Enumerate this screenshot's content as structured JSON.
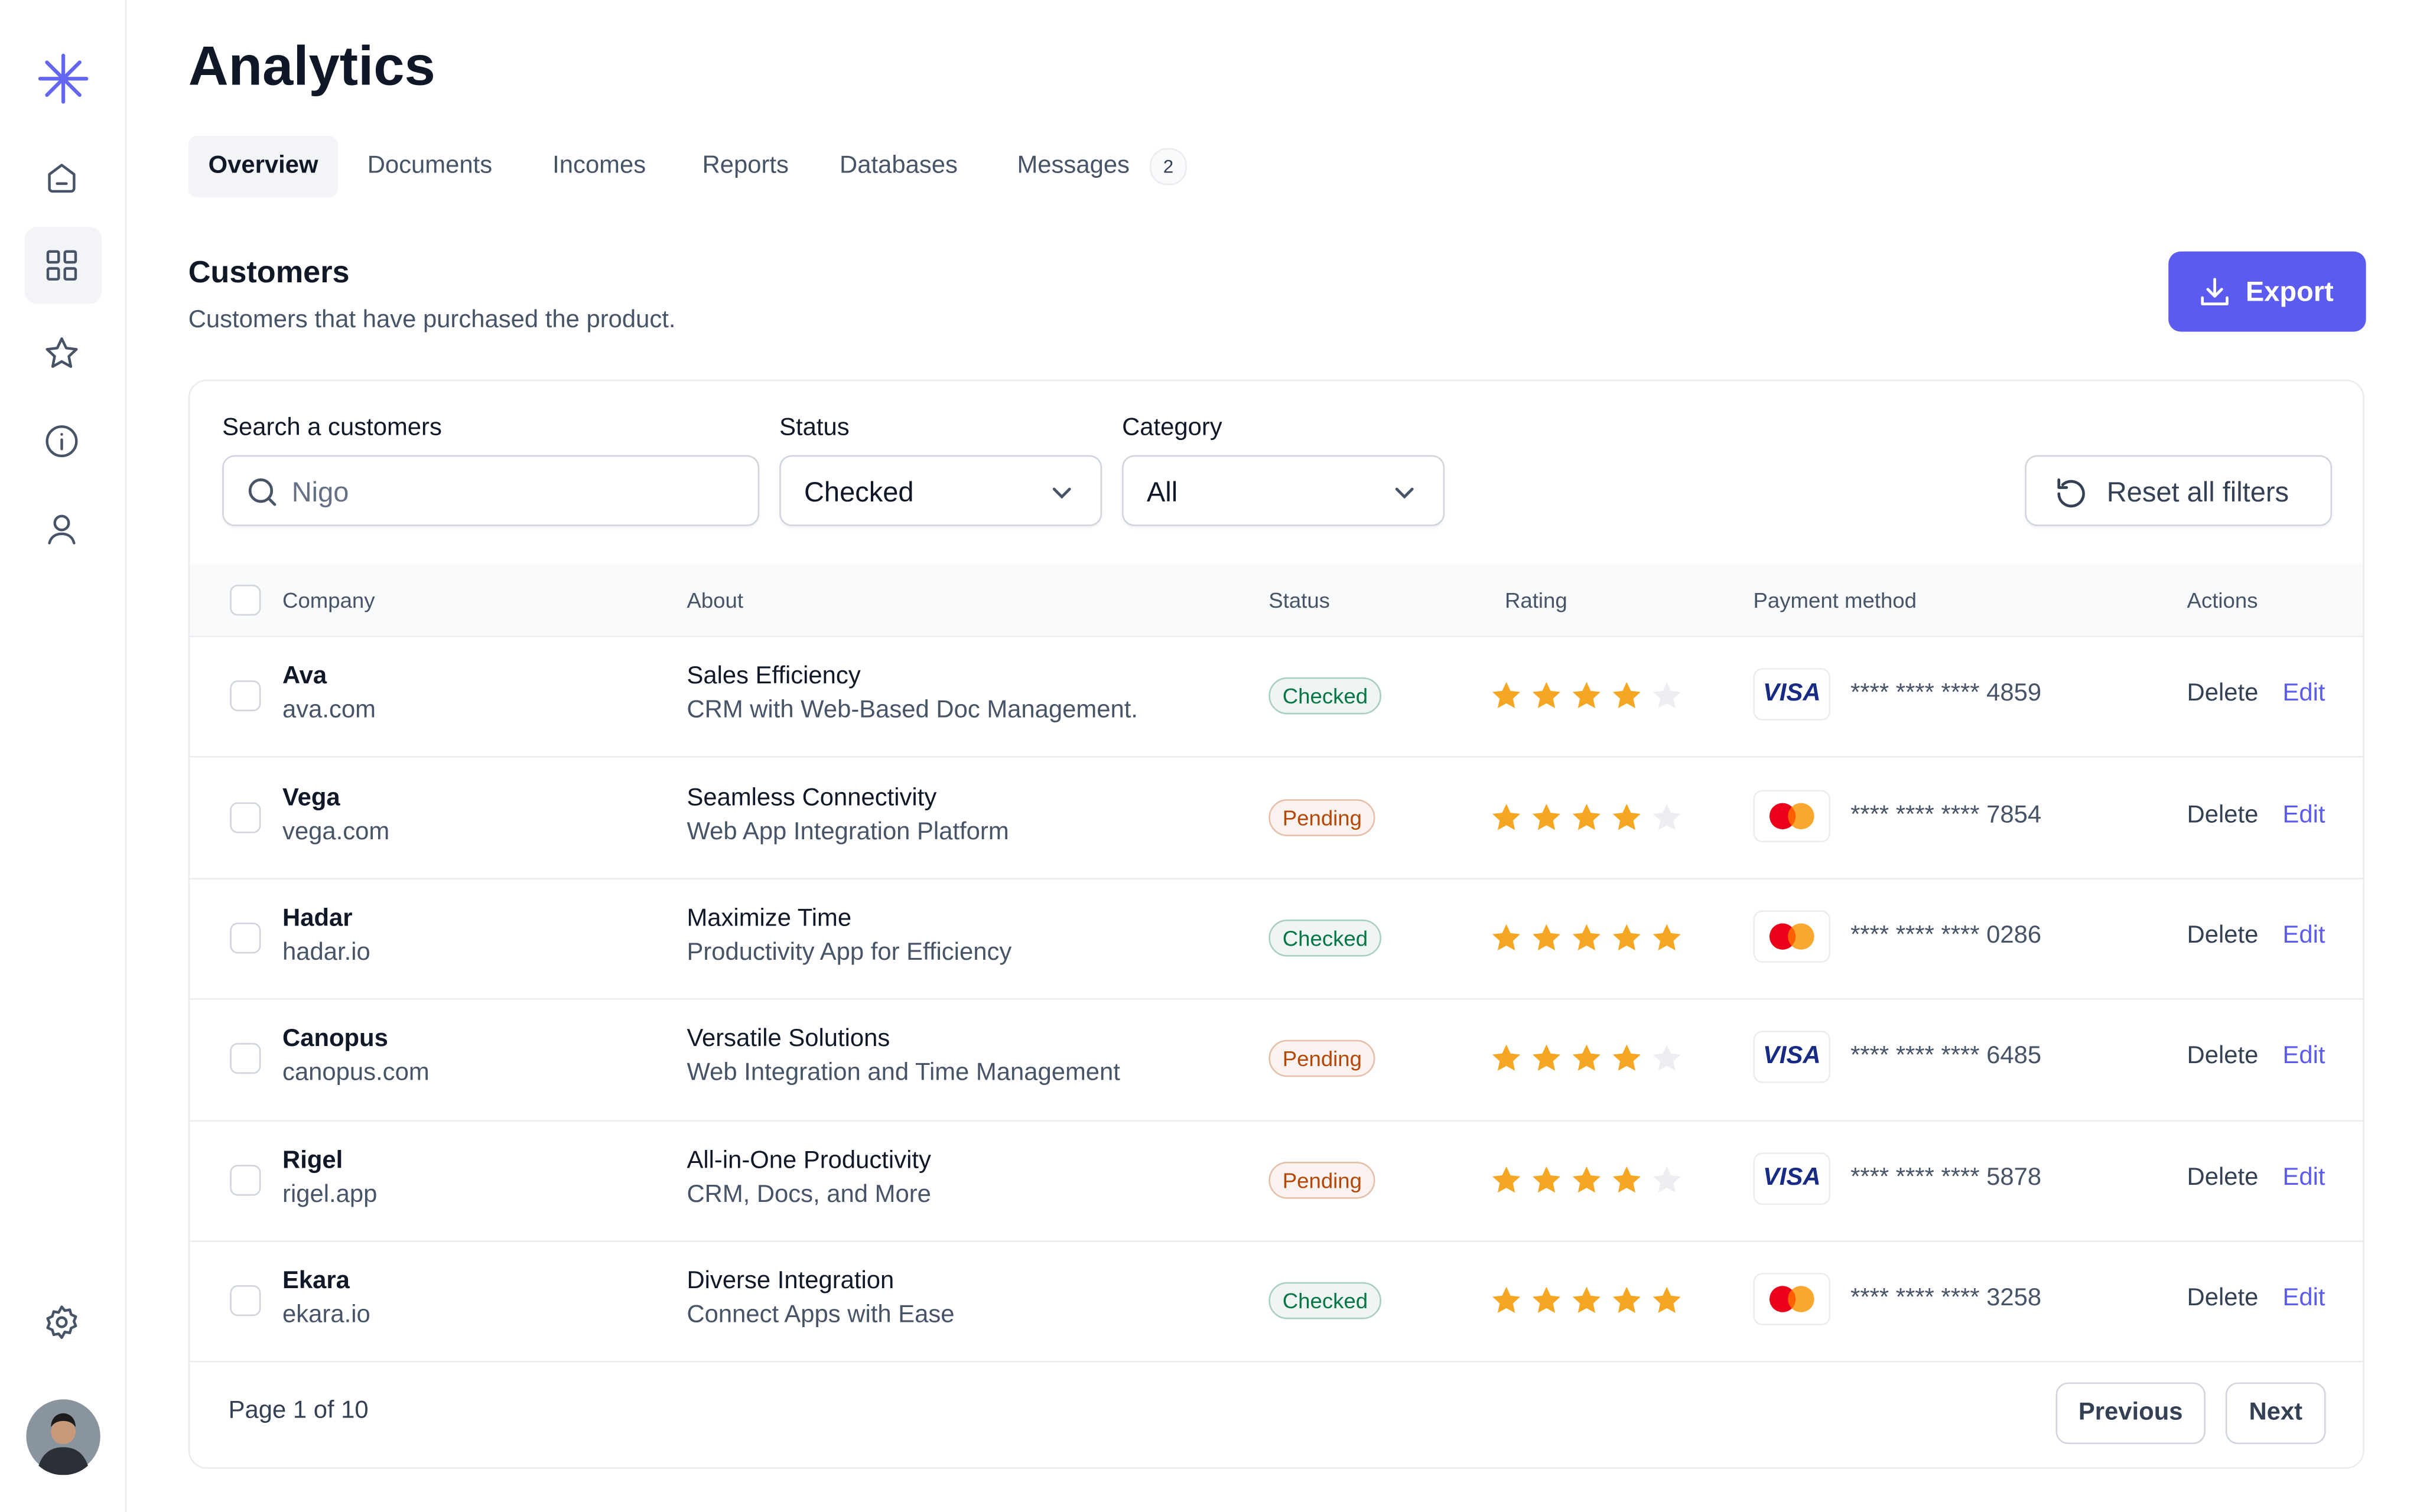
{
  "header": {
    "title": "Analytics"
  },
  "tabs": {
    "items": [
      "Overview",
      "Documents",
      "Incomes",
      "Reports",
      "Databases",
      "Messages"
    ],
    "active": 0,
    "badge": 2
  },
  "section": {
    "title": "Customers",
    "subtitle": "Customers that have purchased the product.",
    "export": "Export"
  },
  "filters": {
    "search_label": "Search a customers",
    "search_value": "Nigo",
    "status_label": "Status",
    "status_value": "Checked",
    "category_label": "Category",
    "category_value": "All",
    "reset": "Reset all filters"
  },
  "table": {
    "columns": [
      "Company",
      "About",
      "Status",
      "Rating",
      "Payment method",
      "Actions"
    ],
    "rating_max": 5,
    "star_color": "#f5a623",
    "star_empty_color": "#eceef2",
    "actions": {
      "delete": "Delete",
      "edit": "Edit"
    },
    "rows": [
      {
        "company": "Ava",
        "domain": "ava.com",
        "about_title": "Sales Efficiency",
        "about_text": "CRM with Web-Based Doc Management.",
        "status": "Checked",
        "status_color": "#067647",
        "rating": 4,
        "card_logo": "VISA",
        "card_number": "**** **** **** 4859"
      },
      {
        "company": "Vega",
        "domain": "vega.com",
        "about_title": "Seamless Connectivity",
        "about_text": "Web App Integration Platform",
        "status": "Pending",
        "status_color": "#b54708",
        "rating": 4,
        "card_logo": null,
        "card_number": "**** **** **** 7854"
      },
      {
        "company": "Hadar",
        "domain": "hadar.io",
        "about_title": "Maximize Time",
        "about_text": "Productivity App for Efficiency",
        "status": "Checked",
        "status_color": "#067647",
        "rating": 5,
        "card_logo": null,
        "card_number": "**** **** **** 0286"
      },
      {
        "company": "Canopus",
        "domain": "canopus.com",
        "about_title": "Versatile Solutions",
        "about_text": "Web Integration and Time Management",
        "status": "Pending",
        "status_color": "#b54708",
        "rating": 4,
        "card_logo": "VISA",
        "card_number": "**** **** **** 6485"
      },
      {
        "company": "Rigel",
        "domain": "rigel.app",
        "about_title": "All-in-One Productivity",
        "about_text": "CRM, Docs, and More",
        "status": "Pending",
        "status_color": "#b54708",
        "rating": 4,
        "card_logo": "VISA",
        "card_number": "**** **** **** 5878"
      },
      {
        "company": "Ekara",
        "domain": "ekara.io",
        "about_title": "Diverse Integration",
        "about_text": "Connect Apps with Ease",
        "status": "Checked",
        "status_color": "#067647",
        "rating": 5,
        "card_logo": null,
        "card_number": "**** **** **** 3258"
      }
    ]
  },
  "pagination": {
    "page": "Page 1 of 10",
    "previous": "Previous",
    "next": "Next"
  }
}
